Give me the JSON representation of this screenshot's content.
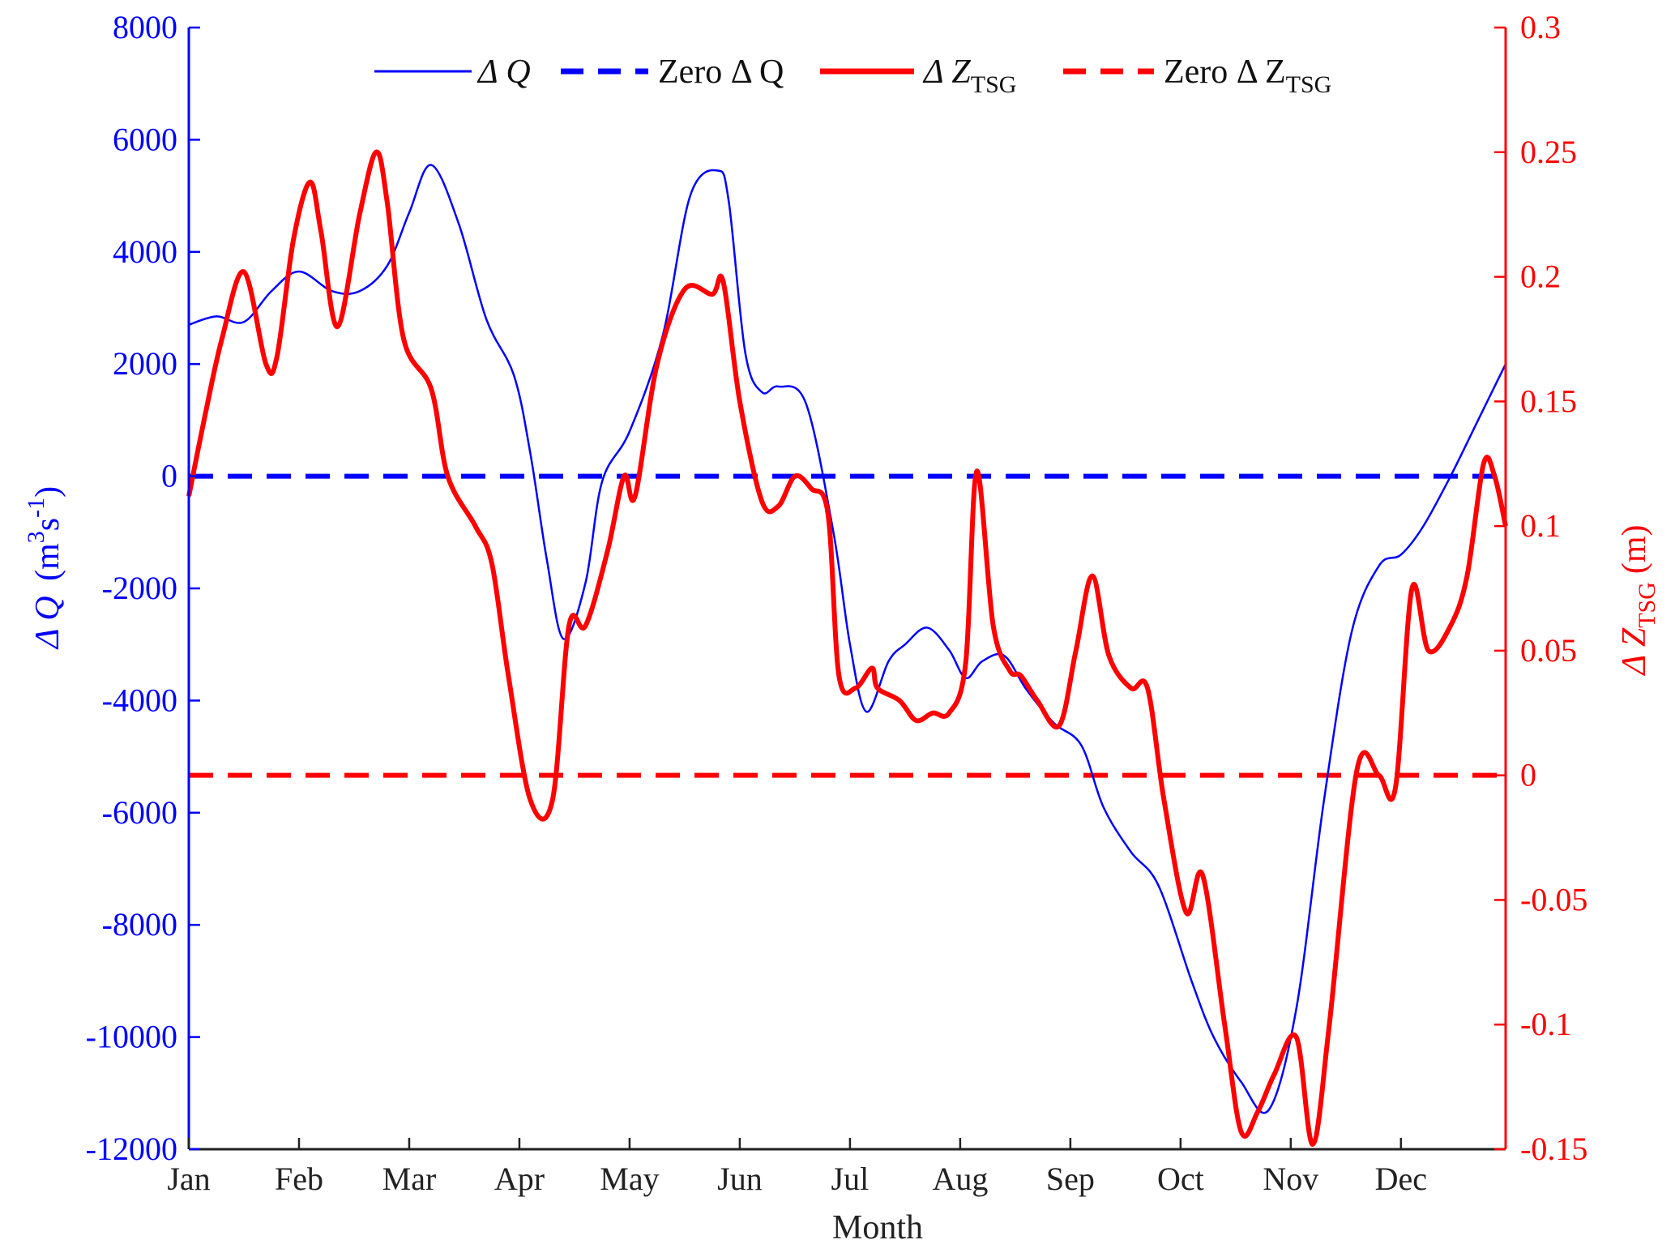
{
  "chart_data": {
    "type": "line",
    "xlabel": "Month",
    "ylabel_left": {
      "symbol": "Δ Q",
      "unit_base": "(m",
      "unit_exp1": "3",
      "unit_mid": "s",
      "unit_exp2": "-1",
      "unit_close": ")"
    },
    "ylabel_right": {
      "symbol": "Δ Z",
      "subscript": "TSG",
      "unit": "(m)"
    },
    "x_months": [
      "Jan",
      "Feb",
      "Mar",
      "Apr",
      "May",
      "Jun",
      "Jul",
      "Aug",
      "Sep",
      "Oct",
      "Nov",
      "Dec"
    ],
    "xlim": [
      0,
      11.95
    ],
    "ylim_left": [
      -12000,
      8000
    ],
    "ylim_right": [
      -0.15,
      0.3
    ],
    "yticks_left": [
      "8000",
      "6000",
      "4000",
      "2000",
      "0",
      "-2000",
      "-4000",
      "-6000",
      "-8000",
      "-10000",
      "-12000"
    ],
    "yticks_right": [
      "0.3",
      "0.25",
      "0.2",
      "0.15",
      "0.1",
      "0.05",
      "0",
      "-0.05",
      "-0.1",
      "-0.15"
    ],
    "legend": {
      "placement": "top",
      "entries": [
        {
          "prefix": "Δ Q",
          "sub": ""
        },
        {
          "prefix": "Zero Δ Q",
          "sub": ""
        },
        {
          "prefix": "Δ Z",
          "sub": "TSG"
        },
        {
          "prefix": "Zero Δ Z",
          "sub": "TSG"
        }
      ]
    },
    "colors": {
      "dq": "#0000ff",
      "dz": "#ff0000",
      "axis": "#222222"
    },
    "series": [
      {
        "name": "Δ Q",
        "axis": "left",
        "style": "solid-thin",
        "x": [
          0,
          0.25,
          0.5,
          0.75,
          1.0,
          1.3,
          1.55,
          1.8,
          2.0,
          2.2,
          2.45,
          2.7,
          2.95,
          3.1,
          3.25,
          3.4,
          3.6,
          3.75,
          4.0,
          4.3,
          4.55,
          4.8,
          4.9,
          5.05,
          5.2,
          5.35,
          5.6,
          5.85,
          6.0,
          6.15,
          6.35,
          6.5,
          6.7,
          6.9,
          7.05,
          7.2,
          7.4,
          7.6,
          7.85,
          8.1,
          8.3,
          8.55,
          8.8,
          9.1,
          9.3,
          9.55,
          9.8,
          10.05,
          10.3,
          10.55,
          10.8,
          11.0,
          11.2,
          11.45,
          11.7,
          11.95
        ],
        "y": [
          2700,
          2850,
          2750,
          3300,
          3650,
          3300,
          3300,
          3750,
          4700,
          5550,
          4500,
          2800,
          1800,
          400,
          -1500,
          -2900,
          -1900,
          -100,
          800,
          2500,
          5000,
          5450,
          4900,
          2200,
          1500,
          1600,
          1300,
          -1000,
          -3000,
          -4200,
          -3300,
          -3000,
          -2700,
          -3100,
          -3600,
          -3300,
          -3200,
          -3800,
          -4400,
          -4800,
          -5900,
          -6700,
          -7300,
          -9000,
          -10000,
          -10800,
          -11300,
          -9500,
          -5800,
          -2800,
          -1600,
          -1400,
          -900,
          0,
          1000,
          2000
        ]
      },
      {
        "name": "Zero Δ Q",
        "axis": "left",
        "style": "dashed",
        "x": [
          0,
          11.95
        ],
        "y": [
          0,
          0
        ]
      },
      {
        "name": "Δ Z TSG",
        "axis": "right",
        "style": "solid-thick",
        "x": [
          0,
          0.15,
          0.3,
          0.5,
          0.7,
          0.8,
          0.95,
          1.1,
          1.2,
          1.35,
          1.55,
          1.7,
          1.8,
          1.95,
          2.2,
          2.35,
          2.6,
          2.75,
          2.9,
          3.1,
          3.3,
          3.45,
          3.6,
          3.8,
          3.95,
          4.05,
          4.25,
          4.5,
          4.75,
          4.85,
          5.0,
          5.2,
          5.35,
          5.5,
          5.65,
          5.8,
          5.9,
          6.05,
          6.2,
          6.25,
          6.45,
          6.6,
          6.75,
          6.9,
          7.05,
          7.15,
          7.3,
          7.45,
          7.55,
          7.7,
          7.9,
          8.05,
          8.2,
          8.35,
          8.55,
          8.7,
          8.85,
          9.05,
          9.2,
          9.4,
          9.55,
          9.7,
          9.85,
          10.05,
          10.2,
          10.35,
          10.6,
          10.8,
          10.95,
          11.1,
          11.25,
          11.45,
          11.6,
          11.75,
          11.85,
          11.95
        ],
        "y": [
          0.112,
          0.145,
          0.175,
          0.202,
          0.165,
          0.168,
          0.215,
          0.238,
          0.218,
          0.18,
          0.225,
          0.25,
          0.23,
          0.175,
          0.155,
          0.12,
          0.1,
          0.085,
          0.04,
          -0.01,
          -0.01,
          0.06,
          0.06,
          0.09,
          0.12,
          0.112,
          0.165,
          0.195,
          0.193,
          0.198,
          0.15,
          0.11,
          0.108,
          0.12,
          0.115,
          0.105,
          0.04,
          0.035,
          0.043,
          0.035,
          0.03,
          0.022,
          0.025,
          0.025,
          0.045,
          0.122,
          0.06,
          0.042,
          0.04,
          0.03,
          0.02,
          0.05,
          0.08,
          0.048,
          0.035,
          0.035,
          -0.01,
          -0.055,
          -0.04,
          -0.1,
          -0.143,
          -0.135,
          -0.12,
          -0.105,
          -0.148,
          -0.1,
          0.002,
          0,
          -0.005,
          0.075,
          0.05,
          0.06,
          0.08,
          0.125,
          0.12,
          0.1
        ]
      },
      {
        "name": "Zero Δ Z TSG",
        "axis": "right",
        "style": "dashed",
        "x": [
          0,
          11.95
        ],
        "y": [
          0,
          0
        ]
      }
    ]
  }
}
